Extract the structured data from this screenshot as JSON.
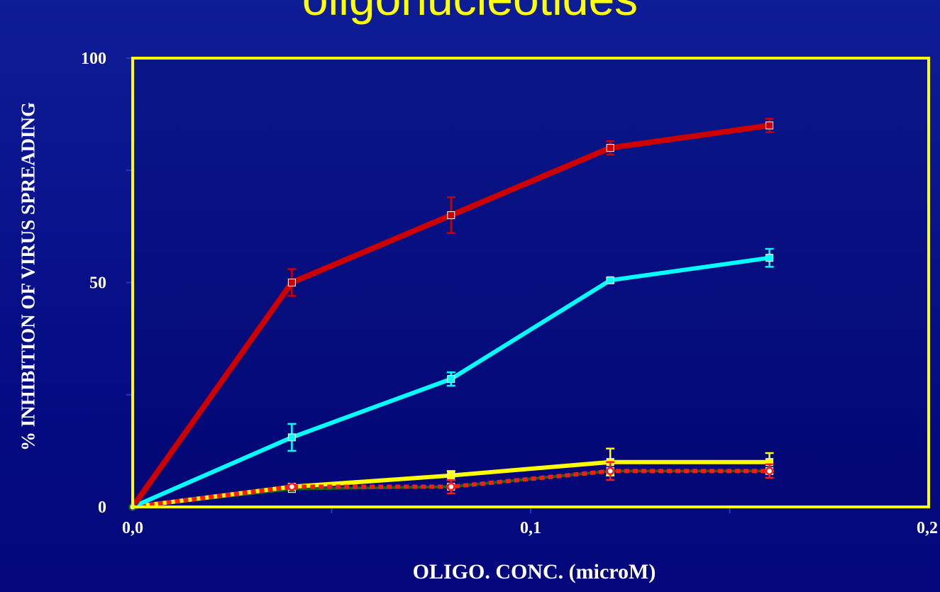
{
  "slide": {
    "title": "oligonucleotides"
  },
  "chart_data": {
    "type": "line",
    "title": "",
    "xlabel": "OLIGO. CONC. (microM)",
    "ylabel": "% INHIBITION OF VIRUS SPREADING",
    "xlim": [
      0,
      0.2
    ],
    "ylim": [
      0,
      100
    ],
    "x_ticks": [
      {
        "value": 0.0,
        "label": "0,0"
      },
      {
        "value": 0.1,
        "label": "0,1"
      },
      {
        "value": 0.2,
        "label": "0,2"
      }
    ],
    "y_ticks": [
      {
        "value": 0,
        "label": "0"
      },
      {
        "value": 50,
        "label": "50"
      },
      {
        "value": 100,
        "label": "100"
      }
    ],
    "grid": false,
    "frame_color": "#ffff00",
    "series": [
      {
        "color": "#cc0000",
        "style": "solid",
        "x": [
          0,
          0.04,
          0.08,
          0.12,
          0.16
        ],
        "y": [
          0,
          50,
          65,
          80,
          85
        ],
        "err": [
          0,
          3,
          4,
          1.5,
          1.5
        ]
      },
      {
        "color": "#00ffff",
        "style": "solid",
        "x": [
          0,
          0.04,
          0.08,
          0.12,
          0.16
        ],
        "y": [
          0,
          15.5,
          28.5,
          50.5,
          55.5
        ],
        "err": [
          0,
          3,
          1.5,
          0.5,
          2
        ]
      },
      {
        "color": "#ffff00",
        "style": "solid",
        "x": [
          0,
          0.04,
          0.08,
          0.12,
          0.16
        ],
        "y": [
          0,
          4.5,
          7,
          10,
          10
        ],
        "err": [
          0,
          0.5,
          1,
          3,
          2
        ]
      },
      {
        "color": "#0e6a1e",
        "style": "solid",
        "x": [
          0,
          0.04,
          0.08,
          0.12,
          0.16
        ],
        "y": [
          0,
          4,
          4.5,
          8,
          8
        ],
        "err": [
          0,
          0,
          0,
          0,
          0
        ]
      },
      {
        "color": "#ff1a1a",
        "style": "dotted",
        "x": [
          0,
          0.04,
          0.08,
          0.12,
          0.16
        ],
        "y": [
          0,
          4.5,
          4.5,
          8,
          8
        ],
        "err": [
          0,
          0.5,
          1.5,
          2,
          1.5
        ]
      }
    ]
  }
}
